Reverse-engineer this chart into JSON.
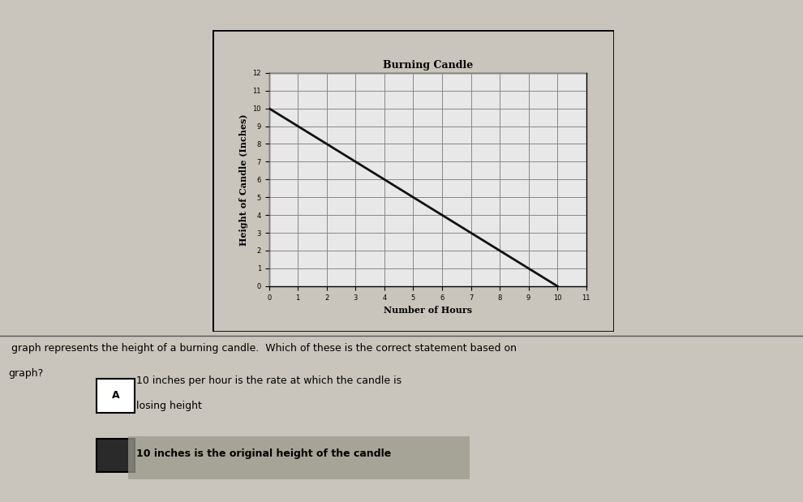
{
  "title": "Burning Candle",
  "xlabel": "Number of Hours",
  "ylabel": "Height of Candle (Inches)",
  "x_start": 0,
  "x_end": 10,
  "y_start": 10,
  "y_end": 0,
  "xlim": [
    0,
    11
  ],
  "ylim": [
    0,
    12
  ],
  "xticks": [
    0,
    1,
    2,
    3,
    4,
    5,
    6,
    7,
    8,
    9,
    10,
    11
  ],
  "yticks": [
    0,
    1,
    2,
    3,
    4,
    5,
    6,
    7,
    8,
    9,
    10,
    11,
    12
  ],
  "line_color": "#111111",
  "grid_color": "#888888",
  "plot_bg_color": "#e8e8e8",
  "paper_color": "#c9c5bc",
  "chart_area_color": "#f0eeea",
  "option_A_text_line1": "10 inches per hour is the rate at which the candle is",
  "option_A_text_line2": "losing height",
  "option_B_text": "10 inches is the original height of the candle",
  "option_A_label": "A",
  "question_line1": " graph represents the height of a burning candle.  Which of these is the correct statement based on",
  "question_line2": "graph?",
  "title_fontsize": 9,
  "axis_label_fontsize": 8,
  "tick_fontsize": 6
}
